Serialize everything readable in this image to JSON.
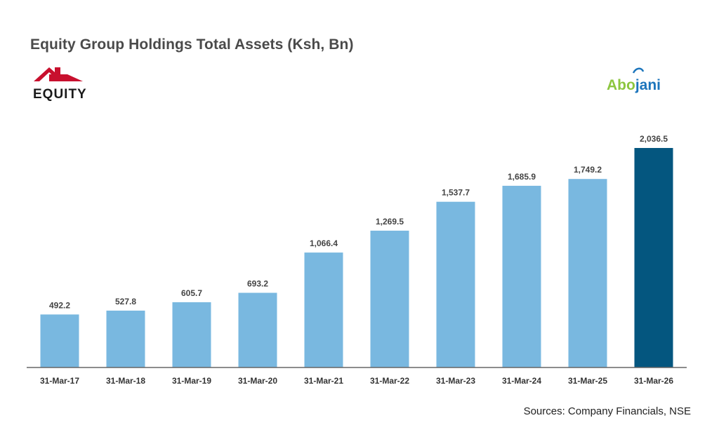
{
  "header": {
    "title": "Equity Group Holdings Total Assets (Ksh, Bn)"
  },
  "logos": {
    "left_text": "EQUITY",
    "right_text_a": "Abo",
    "right_text_b": "jani",
    "left_color": "#c8102e",
    "right_color_a": "#8cc63f",
    "right_color_b": "#1c75bc"
  },
  "footer": {
    "source": "Sources: Company Financials, NSE"
  },
  "chart_data": {
    "type": "bar",
    "title": "Equity Group Holdings Total Assets (Ksh, Bn)",
    "xlabel": "",
    "ylabel": "",
    "categories": [
      "31-Mar-17",
      "31-Mar-18",
      "31-Mar-19",
      "31-Mar-20",
      "31-Mar-21",
      "31-Mar-22",
      "31-Mar-23",
      "31-Mar-24",
      "31-Mar-25",
      "31-Mar-26"
    ],
    "values": [
      492.2,
      527.8,
      605.7,
      693.2,
      1066.4,
      1269.5,
      1537.7,
      1685.9,
      1749.2,
      2036.5
    ],
    "value_labels": [
      "492.2",
      "527.8",
      "605.7",
      "693.2",
      "1,066.4",
      "1,269.5",
      "1,537.7",
      "1,685.9",
      "1,749.2",
      "2,036.5"
    ],
    "ylim": [
      0,
      2036.5
    ],
    "grid": false,
    "colors": {
      "default": "#79b8e0",
      "highlight": "#04567f",
      "axis": "#666666"
    },
    "highlight_index": 9
  }
}
